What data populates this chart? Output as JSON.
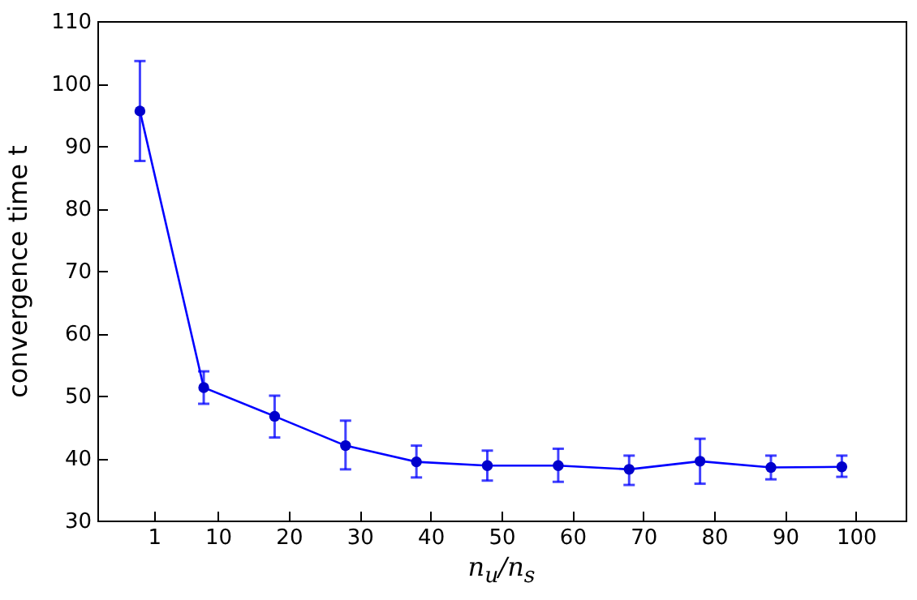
{
  "chart_data": {
    "type": "line",
    "xlabel": "n$_{u}$/n$_{s}$",
    "ylabel": "convergence time t",
    "x": [
      -1,
      8,
      18,
      28,
      38,
      48,
      58,
      68,
      78,
      88,
      98
    ],
    "series": [
      {
        "color": "#0000ff",
        "values": [
          95.6,
          51.3,
          46.7,
          42.0,
          39.4,
          38.8,
          38.8,
          38.2,
          39.5,
          38.5,
          38.6
        ],
        "errors": [
          [
            87.6,
            103.6
          ],
          [
            48.7,
            53.9
          ],
          [
            43.3,
            50.0
          ],
          [
            38.2,
            46.0
          ],
          [
            36.9,
            42.0
          ],
          [
            36.4,
            41.2
          ],
          [
            36.2,
            41.5
          ],
          [
            35.7,
            40.4
          ],
          [
            35.9,
            43.1
          ],
          [
            36.6,
            40.4
          ],
          [
            37.0,
            40.4
          ]
        ]
      }
    ],
    "xlim": [
      -7,
      107
    ],
    "xticks": [
      1,
      10,
      20,
      30,
      40,
      50,
      60,
      70,
      80,
      90,
      100
    ],
    "ylim": [
      30,
      110
    ],
    "yticks": [
      30,
      40,
      50,
      60,
      70,
      80,
      90,
      100,
      110
    ],
    "marker": "circle",
    "line_style": "solid",
    "grid": false,
    "legend": false
  }
}
